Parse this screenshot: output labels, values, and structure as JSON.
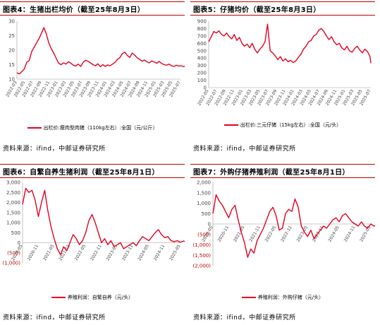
{
  "figures": [
    {
      "title": "图表4：生猪出栏均价（截至25年8月3日）",
      "legend": "出栏价:瘦肉型肉猪（110kg左右）:全国（元/公斤）",
      "source": "资料来源：ifind，中邮证券研究所",
      "chart_data": {
        "type": "line",
        "title": "图表4：生猪出栏均价（截至25年8月3日）",
        "ylim": [
          10,
          30
        ],
        "yticks": [
          "30",
          "25",
          "20",
          "15",
          "10"
        ],
        "xticks": [
          "2022-03",
          "2022-05",
          "2022-07",
          "2022-09",
          "2022-11",
          "2023-01",
          "2023-03",
          "2023-05",
          "2023-07",
          "2023-09",
          "2023-11",
          "2024-01",
          "2024-03",
          "2024-05",
          "2024-07",
          "2024-09",
          "2024-11",
          "2025-01",
          "2025-03",
          "2025-05",
          "2025-07"
        ],
        "series": [
          {
            "name": "出栏价:瘦肉型肉猪（110kg左右）:全国（元/公斤）",
            "x": [
              0,
              0.3,
              0.6,
              0.9,
              1.2,
              1.5,
              1.8,
              2.1,
              2.4,
              2.7,
              3.0,
              3.3,
              3.6,
              3.9,
              4.2,
              4.5,
              4.8,
              5.1,
              5.4,
              5.7,
              6.0,
              6.3,
              6.6,
              6.9,
              7.2,
              7.5,
              7.8,
              8.1,
              8.4,
              8.7,
              9.0,
              9.3,
              9.6,
              9.9,
              10.2,
              10.5,
              10.8,
              11.1,
              11.4,
              11.7,
              12.0,
              12.3,
              12.6,
              12.9,
              13.2,
              13.5,
              13.8,
              14.1,
              14.4,
              14.7,
              15.0,
              15.3,
              15.6,
              15.9,
              16.2,
              16.5,
              16.8,
              17.1,
              17.4,
              17.7,
              18.0,
              18.3,
              18.6,
              18.9,
              19.2,
              19.5,
              19.8,
              20.1,
              20.4,
              20.7,
              21.0
            ],
            "values": [
              12.2,
              11.8,
              12.6,
              13.5,
              15.8,
              16.4,
              19.5,
              21.0,
              22.5,
              24.0,
              25.8,
              27.8,
              25.5,
              22.5,
              20.5,
              19.0,
              17.2,
              15.5,
              15.0,
              15.6,
              15.2,
              16.0,
              15.5,
              14.8,
              14.5,
              15.2,
              14.4,
              15.8,
              16.5,
              16.2,
              15.6,
              15.0,
              14.6,
              15.3,
              14.3,
              15.0,
              14.4,
              14.9,
              14.6,
              15.2,
              15.8,
              16.8,
              17.5,
              18.8,
              19.3,
              18.2,
              17.5,
              19.0,
              18.3,
              17.4,
              16.8,
              16.2,
              16.6,
              16.0,
              15.6,
              16.3,
              15.9,
              15.5,
              16.1,
              15.4,
              15.0,
              14.8,
              15.2,
              14.6,
              14.4,
              14.8,
              14.5,
              14.6,
              14.3,
              14.7,
              14.2
            ]
          }
        ]
      }
    },
    {
      "title": "图表5：仔猪均价（截至25年8月3日）",
      "legend": "出栏价:三元仔猪（15kg左右）:全国（元/头）",
      "source": "资料来源：ifind，中邮证券研究所",
      "chart_data": {
        "type": "line",
        "title": "图表5：仔猪均价（截至25年8月3日）",
        "ylim": [
          0,
          900
        ],
        "yticks": [
          "900",
          "800",
          "700",
          "600",
          "500",
          "400",
          "300",
          "200",
          "100",
          "0"
        ],
        "xticks": [
          "2022-05",
          "2022-07",
          "2022-09",
          "2022-11",
          "2023-01",
          "2023-03",
          "2023-05",
          "2023-07",
          "2023-09",
          "2023-11",
          "2024-01",
          "2024-03",
          "2024-05",
          "2024-07",
          "2024-09",
          "2024-11",
          "2025-01",
          "2025-03",
          "2025-05",
          "2025-07"
        ],
        "series": [
          {
            "name": "出栏价:三元仔猪（15kg左右）:全国（元/头）",
            "x": [
              0,
              0.3,
              0.6,
              0.9,
              1.2,
              1.5,
              1.8,
              2.1,
              2.4,
              2.7,
              3.0,
              3.3,
              3.6,
              3.9,
              4.2,
              4.5,
              4.8,
              5.1,
              5.4,
              5.7,
              6.0,
              6.3,
              6.6,
              6.9,
              7.2,
              7.5,
              7.8,
              8.1,
              8.4,
              8.7,
              9.0,
              9.3,
              9.6,
              9.9,
              10.2,
              10.5,
              10.8,
              11.1,
              11.4,
              11.7,
              12.0,
              12.3,
              12.6,
              12.9,
              13.2,
              13.5,
              13.8,
              14.1,
              14.4,
              14.7,
              15.0,
              15.3,
              15.6,
              15.9,
              16.2,
              16.5,
              16.8,
              17.1,
              17.4,
              17.7,
              18.0,
              18.3,
              18.6,
              18.9,
              19.0
            ],
            "values": [
              620,
              690,
              760,
              740,
              770,
              720,
              700,
              740,
              690,
              660,
              720,
              640,
              680,
              600,
              560,
              590,
              540,
              600,
              520,
              470,
              520,
              560,
              620,
              860,
              500,
              470,
              430,
              380,
              420,
              360,
              390,
              350,
              370,
              340,
              360,
              410,
              450,
              520,
              560,
              620,
              640,
              700,
              720,
              780,
              800,
              760,
              700,
              650,
              690,
              620,
              580,
              600,
              540,
              510,
              560,
              500,
              480,
              530,
              560,
              510,
              470,
              520,
              490,
              420,
              330
            ]
          }
        ]
      }
    },
    {
      "title": "图表6：自繁自养生猪利润（截至25年8月1日）",
      "legend": "养殖利润：自繁自养（元/头）",
      "source": "资料来源：ifind，中邮证券研究所",
      "chart_data": {
        "type": "line",
        "title": "图表6：自繁自养生猪利润（截至25年8月1日）",
        "ylim": [
          -1000,
          3000
        ],
        "yticks": [
          "3,000",
          "2,500",
          "2,000",
          "1,500",
          "1,000",
          "500",
          "0",
          "(500)",
          "(1,000)"
        ],
        "xticks": [
          "2020-05",
          "2020-11",
          "2021-05",
          "2021-11",
          "2022-05",
          "2022-11",
          "2023-05",
          "2023-11",
          "2024-05",
          "2024-11",
          "2025-05"
        ],
        "series": [
          {
            "name": "养殖利润：自繁自养（元/头）",
            "x": [
              0,
              0.2,
              0.4,
              0.6,
              0.8,
              1.0,
              1.2,
              1.4,
              1.6,
              1.8,
              2.0,
              2.2,
              2.4,
              2.6,
              2.8,
              3.0,
              3.2,
              3.4,
              3.6,
              3.8,
              4.0,
              4.2,
              4.4,
              4.6,
              4.8,
              5.0,
              5.2,
              5.4,
              5.6,
              5.8,
              6.0,
              6.2,
              6.4,
              6.6,
              6.8,
              7.0,
              7.2,
              7.4,
              7.6,
              7.8,
              8.0,
              8.2,
              8.4,
              8.6,
              8.8,
              9.0,
              9.2,
              9.4,
              9.6,
              9.8,
              10.0,
              10.2,
              10.4
            ],
            "values": [
              1900,
              2700,
              2500,
              2600,
              2100,
              1300,
              2000,
              2600,
              1600,
              800,
              200,
              -300,
              -600,
              -200,
              -400,
              0,
              400,
              200,
              -100,
              100,
              500,
              1100,
              1400,
              1000,
              500,
              0,
              200,
              -100,
              100,
              -200,
              -100,
              0,
              -300,
              -200,
              -100,
              0,
              -150,
              100,
              300,
              200,
              100,
              300,
              500,
              650,
              400,
              250,
              300,
              100,
              50,
              100,
              20,
              80,
              30
            ]
          }
        ]
      }
    },
    {
      "title": "图表7：外购仔猪养殖利润（截至25年8月1日）",
      "legend": "养殖利润：外购仔猪（元/头）",
      "source": "资料来源：ifind，中邮证券研究所",
      "chart_data": {
        "type": "line",
        "title": "图表7：外购仔猪养殖利润（截至25年8月1日）",
        "ylim": [
          -2000,
          2000
        ],
        "yticks": [
          "2,000",
          "1,500",
          "1,000",
          "500",
          "0",
          "(500)",
          "(1,000)",
          "(1,500)",
          "(2,000)"
        ],
        "xticks": [
          "2020-05",
          "2020-11",
          "2021-05",
          "2021-11",
          "2022-05",
          "2022-11",
          "2023-05",
          "2023-11",
          "2024-05",
          "2024-11",
          "2025-05"
        ],
        "series": [
          {
            "name": "养殖利润：外购仔猪（元/头）",
            "x": [
              0,
              0.2,
              0.4,
              0.6,
              0.8,
              1.0,
              1.2,
              1.4,
              1.6,
              1.8,
              2.0,
              2.2,
              2.4,
              2.6,
              2.8,
              3.0,
              3.2,
              3.4,
              3.6,
              3.8,
              4.0,
              4.2,
              4.4,
              4.6,
              4.8,
              5.0,
              5.2,
              5.4,
              5.6,
              5.8,
              6.0,
              6.2,
              6.4,
              6.6,
              6.8,
              7.0,
              7.2,
              7.4,
              7.6,
              7.8,
              8.0,
              8.2,
              8.4,
              8.6,
              8.8,
              9.0,
              9.2,
              9.4,
              9.6,
              9.8,
              10.0,
              10.2,
              10.4
            ],
            "values": [
              500,
              1400,
              1100,
              900,
              600,
              300,
              700,
              900,
              200,
              -400,
              -900,
              -1600,
              -1200,
              -1400,
              -800,
              -500,
              -200,
              200,
              600,
              800,
              400,
              -300,
              -200,
              500,
              700,
              600,
              1200,
              800,
              -100,
              -400,
              -600,
              -300,
              -700,
              -500,
              -300,
              -100,
              -200,
              0,
              200,
              300,
              100,
              400,
              500,
              300,
              100,
              0,
              -100,
              100,
              -100,
              -200,
              0,
              -100,
              -50
            ]
          }
        ]
      }
    }
  ]
}
